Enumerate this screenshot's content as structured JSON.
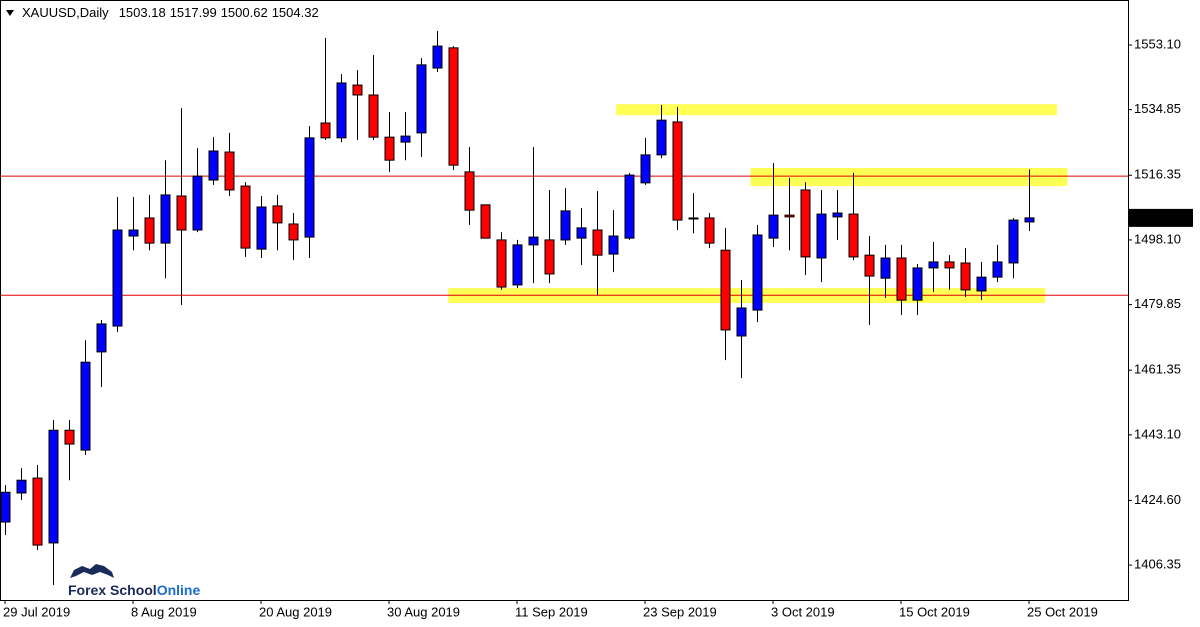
{
  "chart_data": {
    "type": "candlestick",
    "title": "XAUUSD,Daily",
    "watermark": [
      "Forex School",
      "Online"
    ],
    "categories": [
      "29 Jul 2019",
      null,
      null,
      null,
      null,
      null,
      null,
      null,
      "8 Aug 2019",
      null,
      null,
      null,
      null,
      null,
      null,
      null,
      "20 Aug 2019",
      null,
      null,
      null,
      null,
      null,
      null,
      null,
      "30 Aug 2019",
      null,
      null,
      null,
      null,
      null,
      null,
      null,
      "11 Sep 2019",
      null,
      null,
      null,
      null,
      null,
      null,
      null,
      "23 Sep 2019",
      null,
      null,
      null,
      null,
      null,
      null,
      null,
      "3 Oct 2019",
      null,
      null,
      null,
      null,
      null,
      null,
      null,
      "15 Oct 2019",
      null,
      null,
      null,
      null,
      null,
      null,
      null,
      "25 Oct 2019"
    ],
    "open": [
      1418.5,
      1426.7,
      1430.9,
      1412.6,
      1444.4,
      1438.8,
      1466.5,
      1473.8,
      1499.2,
      1504.3,
      1497.2,
      1510.5,
      1500.9,
      1515.0,
      1522.9,
      1513.3,
      1495.5,
      1507.7,
      1502.6,
      1498.9,
      1531.1,
      1526.9,
      1541.8,
      1539.0,
      1527.1,
      1525.7,
      1528.3,
      1546.6,
      1552.3,
      1517.3,
      1508.0,
      1498.1,
      1485.4,
      1496.7,
      1498.1,
      1498.1,
      1498.6,
      1500.9,
      1494.1,
      1498.6,
      1514.2,
      1522.1,
      1531.4,
      1504.3,
      1504.3,
      1495.2,
      1471.0,
      1478.3,
      1498.6,
      1505.1,
      1512.2,
      1493.0,
      1504.6,
      1505.4,
      1493.8,
      1487.3,
      1493.0,
      1481.1,
      1490.2,
      1491.9,
      1491.6,
      1483.7,
      1487.6,
      1491.6,
      1503.18
    ],
    "high": [
      1428.9,
      1433.7,
      1434.6,
      1447.3,
      1447.3,
      1469.8,
      1475.5,
      1510.2,
      1510.2,
      1510.8,
      1520.6,
      1535.3,
      1524.0,
      1527.1,
      1528.3,
      1514.4,
      1510.5,
      1510.8,
      1505.7,
      1530.2,
      1555.1,
      1544.9,
      1546.0,
      1550.3,
      1534.2,
      1534.2,
      1549.4,
      1557.1,
      1552.8,
      1524.3,
      1508.0,
      1500.3,
      1498.1,
      1524.3,
      1512.2,
      1512.7,
      1507.1,
      1511.9,
      1506.5,
      1517.0,
      1526.9,
      1536.2,
      1535.6,
      1511.3,
      1505.7,
      1501.5,
      1486.8,
      1502.3,
      1519.8,
      1515.6,
      1514.4,
      1512.2,
      1512.2,
      1517.0,
      1499.2,
      1496.7,
      1496.7,
      1491.3,
      1497.5,
      1493.8,
      1495.8,
      1491.9,
      1496.7,
      1504.3,
      1517.99
    ],
    "low": [
      1414.8,
      1424.7,
      1410.6,
      1400.7,
      1430.3,
      1437.4,
      1456.6,
      1472.1,
      1495.2,
      1495.2,
      1487.3,
      1479.7,
      1500.3,
      1513.6,
      1510.5,
      1493.3,
      1493.0,
      1495.2,
      1492.4,
      1493.0,
      1526.3,
      1525.7,
      1526.3,
      1526.3,
      1517.3,
      1520.6,
      1521.5,
      1545.5,
      1517.8,
      1502.3,
      1498.6,
      1484.0,
      1484.5,
      1485.9,
      1485.9,
      1496.7,
      1491.0,
      1482.6,
      1489.0,
      1498.1,
      1513.6,
      1521.2,
      1500.9,
      1500.0,
      1495.8,
      1464.2,
      1459.1,
      1474.9,
      1496.1,
      1495.2,
      1488.2,
      1486.2,
      1498.1,
      1492.4,
      1474.1,
      1481.7,
      1476.9,
      1476.9,
      1483.4,
      1484.0,
      1482.0,
      1481.1,
      1486.2,
      1487.3,
      1500.62
    ],
    "close": [
      1426.9,
      1430.3,
      1412.0,
      1444.4,
      1440.5,
      1463.6,
      1474.4,
      1500.9,
      1500.9,
      1497.2,
      1510.8,
      1500.9,
      1516.1,
      1523.2,
      1512.2,
      1495.8,
      1507.4,
      1502.9,
      1498.1,
      1526.9,
      1526.9,
      1542.4,
      1539.0,
      1527.1,
      1520.6,
      1527.4,
      1547.5,
      1552.8,
      1519.2,
      1506.5,
      1498.6,
      1484.8,
      1496.7,
      1498.9,
      1488.5,
      1506.3,
      1501.5,
      1493.8,
      1499.2,
      1516.4,
      1522.1,
      1531.9,
      1503.7,
      1504.0,
      1497.2,
      1472.7,
      1478.9,
      1499.5,
      1505.1,
      1504.6,
      1493.3,
      1505.4,
      1505.7,
      1493.3,
      1487.9,
      1493.0,
      1481.1,
      1490.2,
      1491.9,
      1490.2,
      1484.0,
      1487.6,
      1491.9,
      1503.7,
      1504.32
    ],
    "up_color": "#0000ff",
    "down_color": "#ff0000",
    "ylim": [
      1396.5,
      1565.8
    ],
    "yticks": [
      {
        "value": 1553.1,
        "label": "1553.10"
      },
      1534.85,
      1516.35,
      {
        "value": 1498.1,
        "label": "1498.10"
      },
      1479.85,
      1461.35,
      {
        "value": 1443.1,
        "label": "1443.10"
      },
      {
        "value": 1424.6,
        "label": "1424.60"
      },
      1406.35
    ],
    "hlines": [
      1516.1,
      1482.5
    ],
    "hline_color": "#e00000",
    "zones": [
      {
        "y": [
          1533.3,
          1536.4
        ],
        "x": [
          38.2,
          65.75
        ]
      },
      {
        "y": [
          1513.3,
          1518.4
        ],
        "x": [
          46.6,
          66.4
        ]
      },
      {
        "y": [
          1480.3,
          1484.5
        ],
        "x": [
          27.7,
          65
        ]
      }
    ],
    "zone_color": "#ffff55"
  }
}
